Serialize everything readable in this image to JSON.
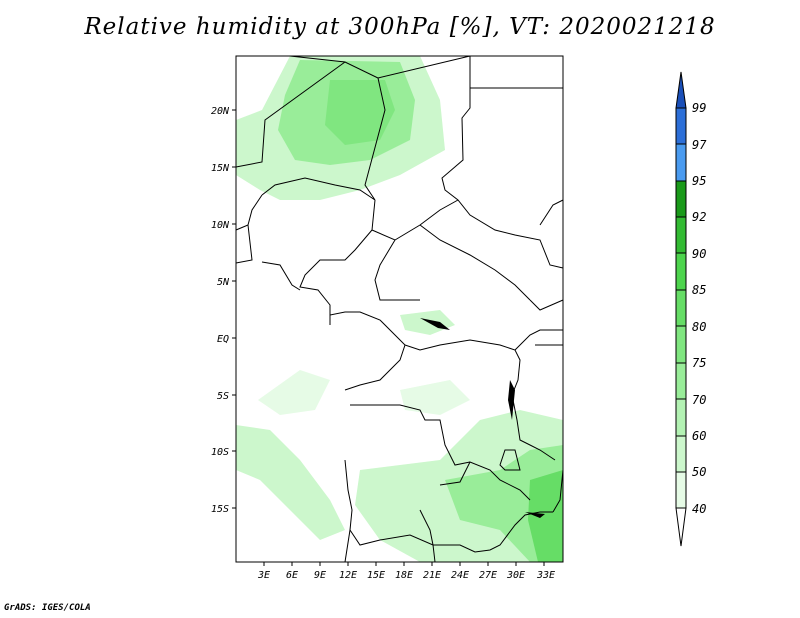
{
  "title": "Relative humidity at 300hPa [%], VT: 2020021218",
  "footer": "GrADS: IGES/COLA",
  "map": {
    "lon_labels": [
      "3E",
      "6E",
      "9E",
      "12E",
      "15E",
      "18E",
      "21E",
      "24E",
      "27E",
      "30E",
      "33E"
    ],
    "lat_labels": [
      "20N",
      "15N",
      "10N",
      "5N",
      "EQ",
      "5S",
      "10S",
      "15S"
    ]
  },
  "colorbar": {
    "levels": [
      "40",
      "50",
      "60",
      "70",
      "75",
      "80",
      "85",
      "90",
      "92",
      "95",
      "97",
      "99"
    ],
    "colors": [
      "#ffffff",
      "#e6fbe6",
      "#ccf7cc",
      "#b3f2b3",
      "#99ed99",
      "#80e680",
      "#66dd66",
      "#4dd44d",
      "#33bb33",
      "#1a9a1a",
      "#4a9bf0",
      "#2c6fd8",
      "#1a4fb8"
    ]
  },
  "colors": {
    "humid_low": "#ccf7cc",
    "humid_mid": "#99ed99",
    "humid_high": "#66dd66"
  }
}
